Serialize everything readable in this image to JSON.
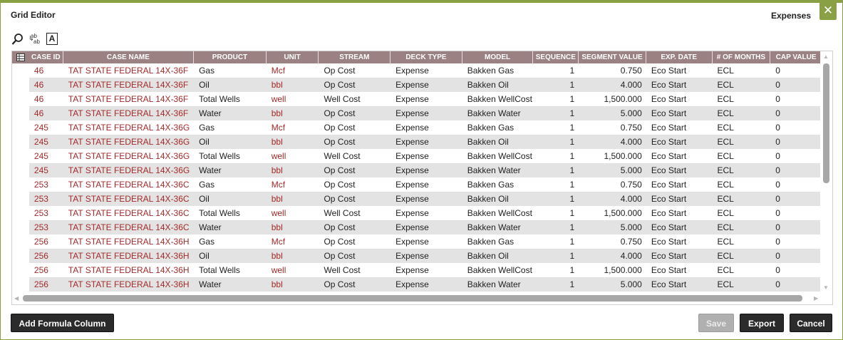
{
  "dialog": {
    "title": "Grid Editor",
    "subtitle": "Expenses",
    "close_label": "✕"
  },
  "toolbar": {
    "ab_top": "ab",
    "ab_bottom": "ab",
    "font_label": "A"
  },
  "columns": [
    "CASE ID",
    "CASE NAME",
    "PRODUCT",
    "UNIT",
    "STREAM",
    "DECK TYPE",
    "MODEL",
    "SEQUENCE",
    "SEGMENT VALUE",
    "EXP. DATE",
    "# OF MONTHS",
    "CAP VALUE"
  ],
  "rows": [
    [
      "46",
      "TAT STATE FEDERAL 14X-36F",
      "Gas",
      "Mcf",
      "Op Cost",
      "Expense",
      "Bakken Gas",
      "1",
      "0.750",
      "Eco Start",
      "ECL",
      "0"
    ],
    [
      "46",
      "TAT STATE FEDERAL 14X-36F",
      "Oil",
      "bbl",
      "Op Cost",
      "Expense",
      "Bakken Oil",
      "1",
      "4.000",
      "Eco Start",
      "ECL",
      "0"
    ],
    [
      "46",
      "TAT STATE FEDERAL 14X-36F",
      "Total Wells",
      "well",
      "Well Cost",
      "Expense",
      "Bakken WellCost",
      "1",
      "1,500.000",
      "Eco Start",
      "ECL",
      "0"
    ],
    [
      "46",
      "TAT STATE FEDERAL 14X-36F",
      "Water",
      "bbl",
      "Op Cost",
      "Expense",
      "Bakken Water",
      "1",
      "5.000",
      "Eco Start",
      "ECL",
      "0"
    ],
    [
      "245",
      "TAT STATE FEDERAL 14X-36G",
      "Gas",
      "Mcf",
      "Op Cost",
      "Expense",
      "Bakken Gas",
      "1",
      "0.750",
      "Eco Start",
      "ECL",
      "0"
    ],
    [
      "245",
      "TAT STATE FEDERAL 14X-36G",
      "Oil",
      "bbl",
      "Op Cost",
      "Expense",
      "Bakken Oil",
      "1",
      "4.000",
      "Eco Start",
      "ECL",
      "0"
    ],
    [
      "245",
      "TAT STATE FEDERAL 14X-36G",
      "Total Wells",
      "well",
      "Well Cost",
      "Expense",
      "Bakken WellCost",
      "1",
      "1,500.000",
      "Eco Start",
      "ECL",
      "0"
    ],
    [
      "245",
      "TAT STATE FEDERAL 14X-36G",
      "Water",
      "bbl",
      "Op Cost",
      "Expense",
      "Bakken Water",
      "1",
      "5.000",
      "Eco Start",
      "ECL",
      "0"
    ],
    [
      "253",
      "TAT STATE FEDERAL 14X-36C",
      "Gas",
      "Mcf",
      "Op Cost",
      "Expense",
      "Bakken Gas",
      "1",
      "0.750",
      "Eco Start",
      "ECL",
      "0"
    ],
    [
      "253",
      "TAT STATE FEDERAL 14X-36C",
      "Oil",
      "bbl",
      "Op Cost",
      "Expense",
      "Bakken Oil",
      "1",
      "4.000",
      "Eco Start",
      "ECL",
      "0"
    ],
    [
      "253",
      "TAT STATE FEDERAL 14X-36C",
      "Total Wells",
      "well",
      "Well Cost",
      "Expense",
      "Bakken WellCost",
      "1",
      "1,500.000",
      "Eco Start",
      "ECL",
      "0"
    ],
    [
      "253",
      "TAT STATE FEDERAL 14X-36C",
      "Water",
      "bbl",
      "Op Cost",
      "Expense",
      "Bakken Water",
      "1",
      "5.000",
      "Eco Start",
      "ECL",
      "0"
    ],
    [
      "256",
      "TAT STATE FEDERAL 14X-36H",
      "Gas",
      "Mcf",
      "Op Cost",
      "Expense",
      "Bakken Gas",
      "1",
      "0.750",
      "Eco Start",
      "ECL",
      "0"
    ],
    [
      "256",
      "TAT STATE FEDERAL 14X-36H",
      "Oil",
      "bbl",
      "Op Cost",
      "Expense",
      "Bakken Oil",
      "1",
      "4.000",
      "Eco Start",
      "ECL",
      "0"
    ],
    [
      "256",
      "TAT STATE FEDERAL 14X-36H",
      "Total Wells",
      "well",
      "Well Cost",
      "Expense",
      "Bakken WellCost",
      "1",
      "1,500.000",
      "Eco Start",
      "ECL",
      "0"
    ],
    [
      "256",
      "TAT STATE FEDERAL 14X-36H",
      "Water",
      "bbl",
      "Op Cost",
      "Expense",
      "Bakken Water",
      "1",
      "5.000",
      "Eco Start",
      "ECL",
      "0"
    ]
  ],
  "buttons": {
    "add_formula": "Add Formula Column",
    "save": "Save",
    "export": "Export",
    "cancel": "Cancel"
  },
  "colors": {
    "accent": "#8aa044",
    "header_bg": "#9b8181",
    "link_red": "#a52a2a"
  },
  "icons": [
    "close-icon",
    "search-icon",
    "replace-text-icon",
    "font-format-icon",
    "column-chooser-icon"
  ]
}
